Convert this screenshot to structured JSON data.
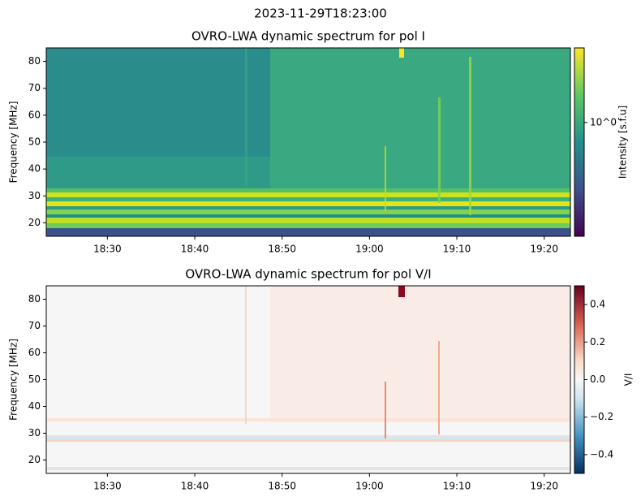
{
  "title": "2023-11-29T18:23:00",
  "chart_data": [
    {
      "type": "heatmap",
      "title": "OVRO-LWA dynamic spectrum for pol I",
      "ylabel": "Frequency [MHz]",
      "xlim": [
        "18:23",
        "19:23"
      ],
      "xticks": [
        "18:30",
        "18:40",
        "18:50",
        "19:00",
        "19:10",
        "19:20"
      ],
      "ylim": [
        15,
        85
      ],
      "yticks": [
        20,
        30,
        40,
        50,
        60,
        70,
        80
      ],
      "colorbar": {
        "label": "Intensity [s.f.u]",
        "scale": "log",
        "colormap": "viridis",
        "clim": [
          0.3,
          2.2
        ],
        "ticks": [
          {
            "value": 1,
            "label": "10^0"
          }
        ]
      }
    },
    {
      "type": "heatmap",
      "title": "OVRO-LWA dynamic spectrum for pol V/I",
      "ylabel": "Frequency [MHz]",
      "xlim": [
        "18:23",
        "19:23"
      ],
      "xticks": [
        "18:30",
        "18:40",
        "18:50",
        "19:00",
        "19:10",
        "19:20"
      ],
      "ylim": [
        15,
        85
      ],
      "yticks": [
        20,
        30,
        40,
        50,
        60,
        70,
        80
      ],
      "colorbar": {
        "label": "V/I",
        "scale": "linear",
        "colormap": "RdBu_r",
        "clim": [
          -0.5,
          0.5
        ],
        "ticks": [
          {
            "value": -0.4,
            "label": "−0.4"
          },
          {
            "value": -0.2,
            "label": "−0.2"
          },
          {
            "value": 0,
            "label": "0.0"
          },
          {
            "value": 0.2,
            "label": "0.2"
          },
          {
            "value": 0.4,
            "label": "0.4"
          }
        ]
      }
    }
  ]
}
